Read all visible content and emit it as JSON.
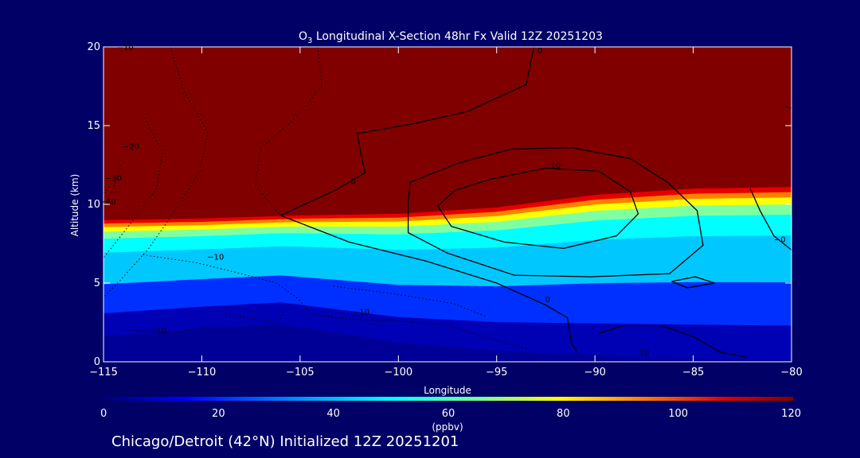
{
  "chart_data": {
    "type": "heatmap",
    "title_pre": "O",
    "title_sub": "3",
    "title_post": " Longitudinal X-Section 48hr  Fx Valid 12Z 20251203",
    "xlabel": "Longitude",
    "ylabel": "Altitude (km)",
    "xlim": [
      -115,
      -80
    ],
    "ylim": [
      0,
      20
    ],
    "x_ticks": [
      -115,
      -110,
      -105,
      -100,
      -95,
      -90,
      -85,
      -80
    ],
    "x_tick_labels": [
      "−115",
      "−110",
      "−105",
      "−100",
      "−95",
      "−90",
      "−85",
      "−80"
    ],
    "y_ticks": [
      0,
      5,
      10,
      15,
      20
    ],
    "y_tick_labels": [
      "0",
      "5",
      "10",
      "15",
      "20"
    ],
    "colorbar": {
      "min": 0,
      "max": 120,
      "ticks": [
        0,
        20,
        40,
        60,
        80,
        100,
        120
      ],
      "tick_labels": [
        "0",
        "20",
        "40",
        "60",
        "80",
        "100",
        "120"
      ],
      "label": "(ppbv)",
      "colors": [
        "#0000b4",
        "#0030ff",
        "#00c8ff",
        "#00ffff",
        "#80ffa0",
        "#ffff00",
        "#ff8000",
        "#e60000",
        "#800000"
      ]
    },
    "tropopause_km": [
      {
        "lon": -115,
        "km": 9.0
      },
      {
        "lon": -110,
        "km": 9.1
      },
      {
        "lon": -105,
        "km": 9.3
      },
      {
        "lon": -100,
        "km": 9.4
      },
      {
        "lon": -95,
        "km": 9.8
      },
      {
        "lon": -90,
        "km": 10.6
      },
      {
        "lon": -85,
        "km": 11.0
      },
      {
        "lon": -80,
        "km": 11.1
      }
    ],
    "surface_km": [
      {
        "lon": -115,
        "km": 1.6
      },
      {
        "lon": -110,
        "km": 2.1
      },
      {
        "lon": -106,
        "km": 2.4
      },
      {
        "lon": -100,
        "km": 1.2
      },
      {
        "lon": -95,
        "km": 0.7
      },
      {
        "lon": -90,
        "km": 0.4
      },
      {
        "lon": -85,
        "km": 0.2
      },
      {
        "lon": -80,
        "km": 0.1
      }
    ],
    "contour_labels": [
      {
        "text": "−10",
        "lon": -113.9,
        "km": 19.8
      },
      {
        "text": "0",
        "lon": -92.8,
        "km": 19.6
      },
      {
        "text": "−20",
        "lon": -113.6,
        "km": 13.5
      },
      {
        "text": "−30",
        "lon": -114.5,
        "km": 11.5
      },
      {
        "text": "−40",
        "lon": -114.8,
        "km": 10.0
      },
      {
        "text": "0",
        "lon": -102.3,
        "km": 11.3
      },
      {
        "text": "10",
        "lon": -92.0,
        "km": 12.3
      },
      {
        "text": "−10",
        "lon": -109.3,
        "km": 6.5
      },
      {
        "text": "0",
        "lon": -92.4,
        "km": 3.8
      },
      {
        "text": "−10",
        "lon": -101.9,
        "km": 3.0
      },
      {
        "text": "−10",
        "lon": -112.2,
        "km": 1.8
      },
      {
        "text": "−0",
        "lon": -80.6,
        "km": 7.6
      },
      {
        "text": "10",
        "lon": -87.5,
        "km": 0.4
      }
    ],
    "caption": "Chicago/Detroit (42°N) Initialized 12Z 20251201"
  }
}
